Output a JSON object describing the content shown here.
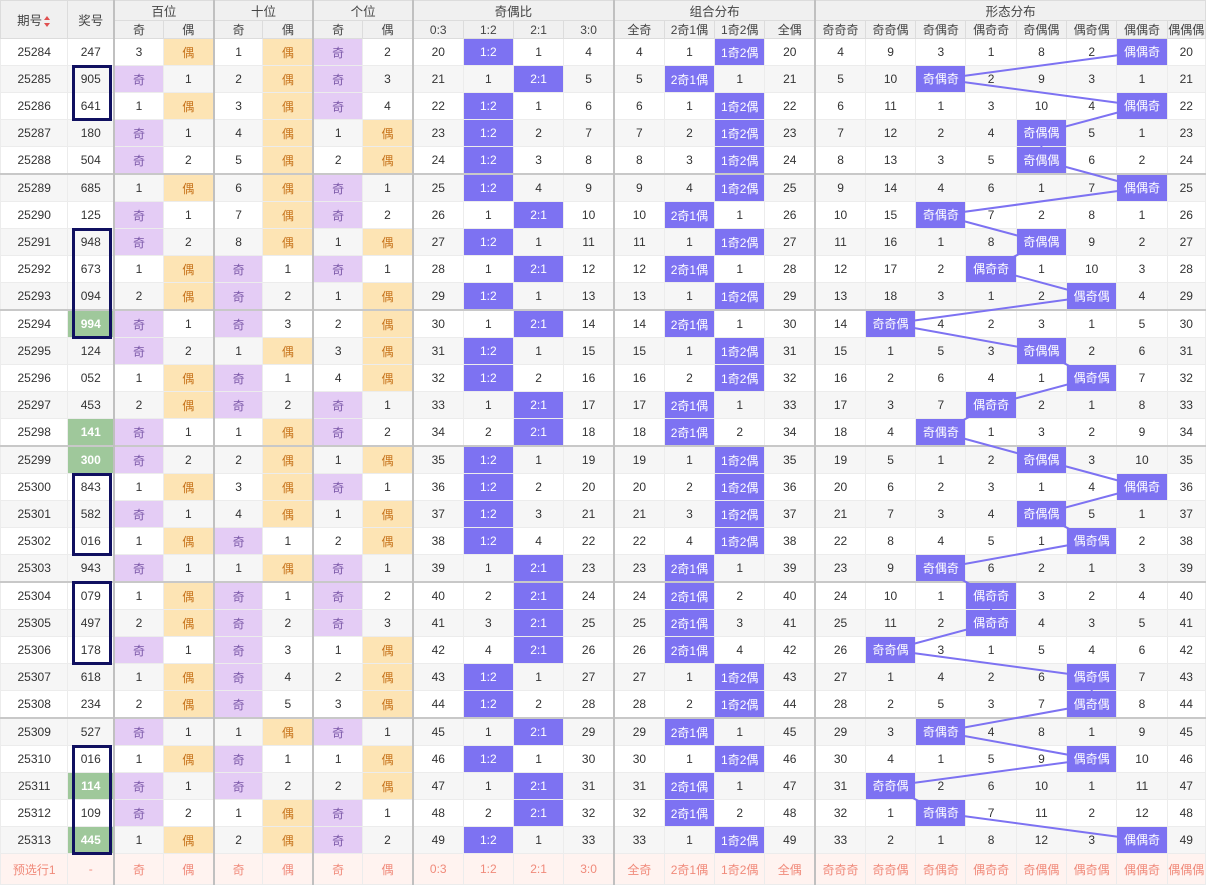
{
  "headers": {
    "issue": "期号",
    "prize": "奖号",
    "groups": [
      "百位",
      "十位",
      "个位",
      "奇偶比",
      "组合分布",
      "形态分布"
    ],
    "sub": [
      "奇",
      "偶",
      "奇",
      "偶",
      "奇",
      "偶",
      "0:3",
      "1:2",
      "2:1",
      "3:0",
      "全奇",
      "2奇1偶",
      "1奇2偶",
      "全偶",
      "奇奇奇",
      "奇奇偶",
      "奇偶奇",
      "偶奇奇",
      "奇偶偶",
      "偶奇偶",
      "偶偶奇",
      "偶偶偶"
    ]
  },
  "rows": [
    {
      "issue": "25284",
      "prize": "247",
      "cells": [
        "3",
        "偶",
        "1",
        "偶",
        "奇",
        "2",
        "20",
        "1:2",
        "1",
        "4",
        "4",
        "1",
        "1奇2偶",
        "20",
        "4",
        "9",
        "3",
        "1",
        "8",
        "2",
        "偶偶奇",
        "20"
      ]
    },
    {
      "issue": "25285",
      "prize": "905",
      "cells": [
        "奇",
        "1",
        "2",
        "偶",
        "奇",
        "3",
        "21",
        "1",
        "2:1",
        "5",
        "5",
        "2奇1偶",
        "1",
        "21",
        "5",
        "10",
        "奇偶奇",
        "2",
        "9",
        "3",
        "1",
        "21"
      ]
    },
    {
      "issue": "25286",
      "prize": "641",
      "cells": [
        "1",
        "偶",
        "3",
        "偶",
        "奇",
        "4",
        "22",
        "1:2",
        "1",
        "6",
        "6",
        "1",
        "1奇2偶",
        "22",
        "6",
        "11",
        "1",
        "3",
        "10",
        "4",
        "偶偶奇",
        "22"
      ]
    },
    {
      "issue": "25287",
      "prize": "180",
      "cells": [
        "奇",
        "1",
        "4",
        "偶",
        "1",
        "偶",
        "23",
        "1:2",
        "2",
        "7",
        "7",
        "2",
        "1奇2偶",
        "23",
        "7",
        "12",
        "2",
        "4",
        "奇偶偶",
        "5",
        "1",
        "23"
      ]
    },
    {
      "issue": "25288",
      "prize": "504",
      "cells": [
        "奇",
        "2",
        "5",
        "偶",
        "2",
        "偶",
        "24",
        "1:2",
        "3",
        "8",
        "8",
        "3",
        "1奇2偶",
        "24",
        "8",
        "13",
        "3",
        "5",
        "奇偶偶",
        "6",
        "2",
        "24"
      ]
    },
    {
      "issue": "25289",
      "prize": "685",
      "cells": [
        "1",
        "偶",
        "6",
        "偶",
        "奇",
        "1",
        "25",
        "1:2",
        "4",
        "9",
        "9",
        "4",
        "1奇2偶",
        "25",
        "9",
        "14",
        "4",
        "6",
        "1",
        "7",
        "偶偶奇",
        "25"
      ]
    },
    {
      "issue": "25290",
      "prize": "125",
      "cells": [
        "奇",
        "1",
        "7",
        "偶",
        "奇",
        "2",
        "26",
        "1",
        "2:1",
        "10",
        "10",
        "2奇1偶",
        "1",
        "26",
        "10",
        "15",
        "奇偶奇",
        "7",
        "2",
        "8",
        "1",
        "26"
      ]
    },
    {
      "issue": "25291",
      "prize": "948",
      "cells": [
        "奇",
        "2",
        "8",
        "偶",
        "1",
        "偶",
        "27",
        "1:2",
        "1",
        "11",
        "11",
        "1",
        "1奇2偶",
        "27",
        "11",
        "16",
        "1",
        "8",
        "奇偶偶",
        "9",
        "2",
        "27"
      ]
    },
    {
      "issue": "25292",
      "prize": "673",
      "cells": [
        "1",
        "偶",
        "奇",
        "1",
        "奇",
        "1",
        "28",
        "1",
        "2:1",
        "12",
        "12",
        "2奇1偶",
        "1",
        "28",
        "12",
        "17",
        "2",
        "偶奇奇",
        "1",
        "10",
        "3",
        "28"
      ]
    },
    {
      "issue": "25293",
      "prize": "094",
      "cells": [
        "2",
        "偶",
        "奇",
        "2",
        "1",
        "偶",
        "29",
        "1:2",
        "1",
        "13",
        "13",
        "1",
        "1奇2偶",
        "29",
        "13",
        "18",
        "3",
        "1",
        "2",
        "偶奇偶",
        "4",
        "29"
      ]
    },
    {
      "issue": "25294",
      "prize": "994",
      "cells": [
        "奇",
        "1",
        "奇",
        "3",
        "2",
        "偶",
        "30",
        "1",
        "2:1",
        "14",
        "14",
        "2奇1偶",
        "1",
        "30",
        "14",
        "奇奇偶",
        "4",
        "2",
        "3",
        "1",
        "5",
        "30"
      ]
    },
    {
      "issue": "25295",
      "prize": "124",
      "cells": [
        "奇",
        "2",
        "1",
        "偶",
        "3",
        "偶",
        "31",
        "1:2",
        "1",
        "15",
        "15",
        "1",
        "1奇2偶",
        "31",
        "15",
        "1",
        "5",
        "3",
        "奇偶偶",
        "2",
        "6",
        "31"
      ]
    },
    {
      "issue": "25296",
      "prize": "052",
      "cells": [
        "1",
        "偶",
        "奇",
        "1",
        "4",
        "偶",
        "32",
        "1:2",
        "2",
        "16",
        "16",
        "2",
        "1奇2偶",
        "32",
        "16",
        "2",
        "6",
        "4",
        "1",
        "偶奇偶",
        "7",
        "32"
      ]
    },
    {
      "issue": "25297",
      "prize": "453",
      "cells": [
        "2",
        "偶",
        "奇",
        "2",
        "奇",
        "1",
        "33",
        "1",
        "2:1",
        "17",
        "17",
        "2奇1偶",
        "1",
        "33",
        "17",
        "3",
        "7",
        "偶奇奇",
        "2",
        "1",
        "8",
        "33"
      ]
    },
    {
      "issue": "25298",
      "prize": "141",
      "cells": [
        "奇",
        "1",
        "1",
        "偶",
        "奇",
        "2",
        "34",
        "2",
        "2:1",
        "18",
        "18",
        "2奇1偶",
        "2",
        "34",
        "18",
        "4",
        "奇偶奇",
        "1",
        "3",
        "2",
        "9",
        "34"
      ]
    },
    {
      "issue": "25299",
      "prize": "300",
      "cells": [
        "奇",
        "2",
        "2",
        "偶",
        "1",
        "偶",
        "35",
        "1:2",
        "1",
        "19",
        "19",
        "1",
        "1奇2偶",
        "35",
        "19",
        "5",
        "1",
        "2",
        "奇偶偶",
        "3",
        "10",
        "35"
      ]
    },
    {
      "issue": "25300",
      "prize": "843",
      "cells": [
        "1",
        "偶",
        "3",
        "偶",
        "奇",
        "1",
        "36",
        "1:2",
        "2",
        "20",
        "20",
        "2",
        "1奇2偶",
        "36",
        "20",
        "6",
        "2",
        "3",
        "1",
        "4",
        "偶偶奇",
        "36"
      ]
    },
    {
      "issue": "25301",
      "prize": "582",
      "cells": [
        "奇",
        "1",
        "4",
        "偶",
        "1",
        "偶",
        "37",
        "1:2",
        "3",
        "21",
        "21",
        "3",
        "1奇2偶",
        "37",
        "21",
        "7",
        "3",
        "4",
        "奇偶偶",
        "5",
        "1",
        "37"
      ]
    },
    {
      "issue": "25302",
      "prize": "016",
      "cells": [
        "1",
        "偶",
        "奇",
        "1",
        "2",
        "偶",
        "38",
        "1:2",
        "4",
        "22",
        "22",
        "4",
        "1奇2偶",
        "38",
        "22",
        "8",
        "4",
        "5",
        "1",
        "偶奇偶",
        "2",
        "38"
      ]
    },
    {
      "issue": "25303",
      "prize": "943",
      "cells": [
        "奇",
        "1",
        "1",
        "偶",
        "奇",
        "1",
        "39",
        "1",
        "2:1",
        "23",
        "23",
        "2奇1偶",
        "1",
        "39",
        "23",
        "9",
        "奇偶奇",
        "6",
        "2",
        "1",
        "3",
        "39"
      ]
    },
    {
      "issue": "25304",
      "prize": "079",
      "cells": [
        "1",
        "偶",
        "奇",
        "1",
        "奇",
        "2",
        "40",
        "2",
        "2:1",
        "24",
        "24",
        "2奇1偶",
        "2",
        "40",
        "24",
        "10",
        "1",
        "偶奇奇",
        "3",
        "2",
        "4",
        "40"
      ]
    },
    {
      "issue": "25305",
      "prize": "497",
      "cells": [
        "2",
        "偶",
        "奇",
        "2",
        "奇",
        "3",
        "41",
        "3",
        "2:1",
        "25",
        "25",
        "2奇1偶",
        "3",
        "41",
        "25",
        "11",
        "2",
        "偶奇奇",
        "4",
        "3",
        "5",
        "41"
      ]
    },
    {
      "issue": "25306",
      "prize": "178",
      "cells": [
        "奇",
        "1",
        "奇",
        "3",
        "1",
        "偶",
        "42",
        "4",
        "2:1",
        "26",
        "26",
        "2奇1偶",
        "4",
        "42",
        "26",
        "奇奇偶",
        "3",
        "1",
        "5",
        "4",
        "6",
        "42"
      ]
    },
    {
      "issue": "25307",
      "prize": "618",
      "cells": [
        "1",
        "偶",
        "奇",
        "4",
        "2",
        "偶",
        "43",
        "1:2",
        "1",
        "27",
        "27",
        "1",
        "1奇2偶",
        "43",
        "27",
        "1",
        "4",
        "2",
        "6",
        "偶奇偶",
        "7",
        "43"
      ]
    },
    {
      "issue": "25308",
      "prize": "234",
      "cells": [
        "2",
        "偶",
        "奇",
        "5",
        "3",
        "偶",
        "44",
        "1:2",
        "2",
        "28",
        "28",
        "2",
        "1奇2偶",
        "44",
        "28",
        "2",
        "5",
        "3",
        "7",
        "偶奇偶",
        "8",
        "44"
      ]
    },
    {
      "issue": "25309",
      "prize": "527",
      "cells": [
        "奇",
        "1",
        "1",
        "偶",
        "奇",
        "1",
        "45",
        "1",
        "2:1",
        "29",
        "29",
        "2奇1偶",
        "1",
        "45",
        "29",
        "3",
        "奇偶奇",
        "4",
        "8",
        "1",
        "9",
        "45"
      ]
    },
    {
      "issue": "25310",
      "prize": "016",
      "cells": [
        "1",
        "偶",
        "奇",
        "1",
        "1",
        "偶",
        "46",
        "1:2",
        "1",
        "30",
        "30",
        "1",
        "1奇2偶",
        "46",
        "30",
        "4",
        "1",
        "5",
        "9",
        "偶奇偶",
        "10",
        "46"
      ]
    },
    {
      "issue": "25311",
      "prize": "114",
      "cells": [
        "奇",
        "1",
        "奇",
        "2",
        "2",
        "偶",
        "47",
        "1",
        "2:1",
        "31",
        "31",
        "2奇1偶",
        "1",
        "47",
        "31",
        "奇奇偶",
        "2",
        "6",
        "10",
        "1",
        "11",
        "47"
      ]
    },
    {
      "issue": "25312",
      "prize": "109",
      "cells": [
        "奇",
        "2",
        "1",
        "偶",
        "奇",
        "1",
        "48",
        "2",
        "2:1",
        "32",
        "32",
        "2奇1偶",
        "2",
        "48",
        "32",
        "1",
        "奇偶奇",
        "7",
        "11",
        "2",
        "12",
        "48"
      ]
    },
    {
      "issue": "25313",
      "prize": "445",
      "cells": [
        "1",
        "偶",
        "2",
        "偶",
        "奇",
        "2",
        "49",
        "1:2",
        "1",
        "33",
        "33",
        "1",
        "1奇2偶",
        "49",
        "33",
        "2",
        "1",
        "8",
        "12",
        "3",
        "偶偶奇",
        "49"
      ]
    }
  ],
  "pick_row": {
    "label": "预选行1",
    "prize": "-",
    "cells": [
      "奇",
      "偶",
      "奇",
      "偶",
      "奇",
      "偶",
      "0:3",
      "1:2",
      "2:1",
      "3:0",
      "全奇",
      "2奇1偶",
      "1奇2偶",
      "全偶",
      "奇奇奇",
      "奇奇偶",
      "奇偶奇",
      "偶奇奇",
      "奇偶偶",
      "偶奇偶",
      "偶偶奇",
      "偶偶偶"
    ]
  },
  "green_prizes": [
    "25294",
    "25298",
    "25299",
    "25311",
    "25313"
  ],
  "marker_groups": [
    [
      "25285",
      "25286"
    ],
    [
      "25291",
      "25294"
    ],
    [
      "25300",
      "25302"
    ],
    [
      "25304",
      "25306"
    ],
    [
      "25310",
      "25313"
    ]
  ],
  "colors": {
    "odd_bg": "#e4ccf5",
    "even_bg": "#fde4b4",
    "highlight": "#7d72f2",
    "line": "#7d72f2",
    "green": "#9fc89b",
    "box": "#101060"
  }
}
